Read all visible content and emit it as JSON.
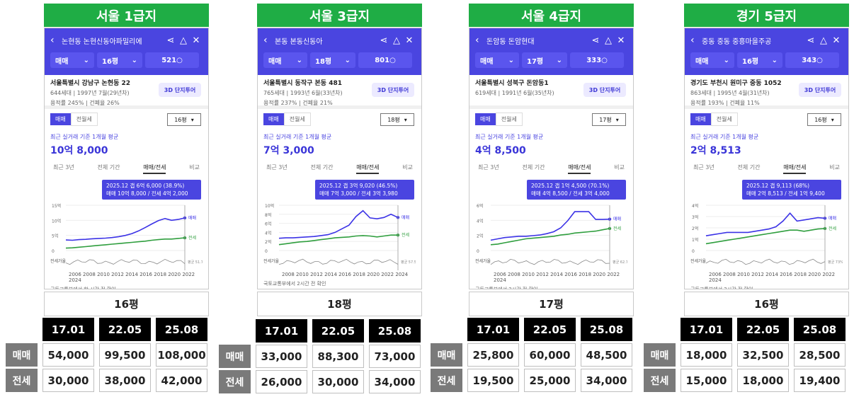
{
  "cards": [
    {
      "title": "서울 1급지",
      "apt_name": "논현동 논현신동아파밀리에",
      "filter_type": "매매",
      "filter_size": "16평",
      "filter_count": "521",
      "address": "서울특별시 강남구 논현동 22",
      "households": "644세대 | 1997년 7월(29년차)",
      "ratios": "용적률 245% | 건폐율 26%",
      "btn_3d": "3D 단지투어",
      "seg_sale": "매매",
      "seg_rent": "전월세",
      "size_select": "16평",
      "recent_label": "최근 실거래 기준 1개월 평균",
      "price": "10억 8,000",
      "tabs": [
        "최근 3년",
        "전체 기간",
        "매매/전세",
        "비교"
      ],
      "tooltip_line1": "2025.12  갭 6억 6,000 (38.9%)",
      "tooltip_line2": "매매 10억 8,000 / 전세 4억 2,000",
      "y_ticks": [
        "15억",
        "10억",
        "5억",
        "0"
      ],
      "ratio_label": "전세가율",
      "ratio_value": "평균 51.7%",
      "legend_sale": "매매",
      "legend_rent": "전세",
      "years": "2006 2008 2010 2012 2014 2016 2018 2020 2022 2024",
      "source": "국토교통부에서 한 시간 전 확인",
      "pyeong": "16평",
      "table": {
        "dates": [
          "17.01",
          "22.05",
          "25.08"
        ],
        "sale_label": "매매",
        "sale": [
          "54,000",
          "99,500",
          "108,000"
        ],
        "rent_label": "전세",
        "rent": [
          "30,000",
          "38,000",
          "42,000"
        ]
      },
      "series": {
        "sale": [
          3.5,
          3.4,
          3.6,
          3.7,
          3.9,
          4.0,
          4.1,
          4.3,
          4.6,
          5.0,
          5.6,
          6.5,
          7.6,
          8.8,
          9.9,
          10.6,
          10.0,
          10.3,
          10.8
        ],
        "rent": [
          0.8,
          0.9,
          1.1,
          1.3,
          1.5,
          1.7,
          1.9,
          2.1,
          2.3,
          2.5,
          2.7,
          2.9,
          3.1,
          3.4,
          3.6,
          3.8,
          3.8,
          4.0,
          4.2
        ]
      },
      "colors": {
        "band": "#1fad45",
        "sale": "#3b32e6",
        "rent": "#2f9e3e"
      }
    },
    {
      "title": "서울 3급지",
      "apt_name": "본동 본동신동아",
      "filter_type": "매매",
      "filter_size": "18평",
      "filter_count": "801",
      "address": "서울특별시 동작구 본동 481",
      "households": "765세대 | 1993년 6월(33년차)",
      "ratios": "용적률 237% | 건폐율 21%",
      "btn_3d": "3D 단지투어",
      "seg_sale": "매매",
      "seg_rent": "전월세",
      "size_select": "18평",
      "recent_label": "최근 실거래 기준 1개월 평균",
      "price": "7억 3,000",
      "tabs": [
        "최근 3년",
        "전체 기간",
        "매매/전세",
        "비교"
      ],
      "tooltip_line1": "2025.12  갭 3억 9,020 (46.5%)",
      "tooltip_line2": "매매 7억 3,000 / 전세 3억 3,980",
      "y_ticks": [
        "10억",
        "8억",
        "6억",
        "4억",
        "2억",
        "0"
      ],
      "ratio_label": "전세가율",
      "ratio_value": "평균 57.5%",
      "legend_sale": "매매",
      "legend_rent": "전세",
      "years": "2008 2010 2012 2014 2016 2018 2020 2022 2024",
      "source": "국토교통부에서 2시간 전 확인",
      "pyeong": "18평",
      "table": {
        "dates": [
          "17.01",
          "22.05",
          "25.08"
        ],
        "sale_label": "매매",
        "sale": [
          "33,000",
          "88,300",
          "73,000"
        ],
        "rent_label": "전세",
        "rent": [
          "26,000",
          "30,000",
          "34,000"
        ]
      },
      "series": {
        "sale": [
          2.7,
          2.8,
          2.8,
          2.9,
          3.0,
          3.1,
          3.3,
          3.5,
          4.0,
          4.8,
          5.6,
          7.5,
          8.8,
          7.2,
          7.0,
          7.3,
          8.0,
          7.3
        ],
        "rent": [
          1.3,
          1.5,
          1.7,
          1.9,
          2.0,
          2.2,
          2.4,
          2.6,
          2.8,
          2.9,
          3.0,
          3.2,
          3.3,
          3.2,
          3.0,
          3.2,
          3.4,
          3.4
        ]
      },
      "colors": {
        "band": "#1fad45",
        "sale": "#3b32e6",
        "rent": "#2f9e3e"
      }
    },
    {
      "title": "서울 4급지",
      "apt_name": "돈암동 돈암현대",
      "filter_type": "매매",
      "filter_size": "17평",
      "filter_count": "333",
      "address": "서울특별시 성북구 돈암동1",
      "households": "619세대 | 1991년 6월(35년차)",
      "ratios": "",
      "btn_3d": "3D 단지투어",
      "seg_sale": "매매",
      "seg_rent": "전월세",
      "size_select": "17평",
      "recent_label": "최근 실거래 기준 1개월 평균",
      "price": "4억 8,500",
      "tabs": [
        "최근 3년",
        "전체 기간",
        "매매/전세",
        "비교"
      ],
      "tooltip_line1": "2025.12  갭 1억 4,500 (70.1%)",
      "tooltip_line2": "매매 4억 8,500 / 전세 3억 4,000",
      "y_ticks": [
        "6억",
        "4억",
        "2억",
        "0"
      ],
      "ratio_label": "전세가율",
      "ratio_value": "평균 62.7%",
      "legend_sale": "매매",
      "legend_rent": "전세",
      "years": "2006 2008 2010 2012 2014 2016 2018 2020 2022 2024",
      "source": "국토교통부에서 2시간 전 확인",
      "pyeong": "17평",
      "table": {
        "dates": [
          "17.01",
          "22.05",
          "25.08"
        ],
        "sale_label": "매매",
        "sale": [
          "25,800",
          "60,000",
          "48,500"
        ],
        "rent_label": "전세",
        "rent": [
          "19,500",
          "25,000",
          "34,000"
        ]
      },
      "series": {
        "sale": [
          1.6,
          1.8,
          2.0,
          2.1,
          2.2,
          2.2,
          2.3,
          2.4,
          2.6,
          2.9,
          3.5,
          4.6,
          6.0,
          6.0,
          6.0,
          4.8,
          4.8,
          4.85
        ],
        "rent": [
          0.9,
          1.0,
          1.2,
          1.4,
          1.6,
          1.8,
          1.9,
          2.0,
          2.1,
          2.2,
          2.4,
          2.5,
          2.7,
          2.8,
          2.9,
          3.0,
          3.2,
          3.4
        ]
      },
      "colors": {
        "band": "#1fad45",
        "sale": "#3b32e6",
        "rent": "#2f9e3e"
      }
    },
    {
      "title": "경기 5급지",
      "apt_name": "중동 중동 중흥마을주공",
      "filter_type": "매매",
      "filter_size": "16평",
      "filter_count": "343",
      "address": "경기도 부천시 원미구 중동 1052",
      "households": "863세대 | 1995년 4월(31년차)",
      "ratios": "용적률 193% | 건폐율 11%",
      "btn_3d": "3D 단지투어",
      "seg_sale": "매매",
      "seg_rent": "전월세",
      "size_select": "16평",
      "recent_label": "최근 실거래 기준 1개월 평균",
      "price": "2억 8,513",
      "tabs": [
        "최근 3년",
        "전체 기간",
        "매매/전세",
        "비교"
      ],
      "tooltip_line1": "2025.12  갭 9,113 (68%)",
      "tooltip_line2": "매매 2억 8,513 / 전세 1억 9,400",
      "y_ticks": [
        "4억",
        "3억",
        "2억",
        "1억",
        "0"
      ],
      "ratio_label": "전세가율",
      "ratio_value": "평균 73%",
      "legend_sale": "매매",
      "legend_rent": "전세",
      "years": "2006 2008 2010 2012 2014 2016 2018 2020 2022 2024",
      "source": "국토교통부에서 2시간 전 확인",
      "pyeong": "16평",
      "table": {
        "dates": [
          "17.01",
          "22.05",
          "25.08"
        ],
        "sale_label": "매매",
        "sale": [
          "18,000",
          "32,500",
          "28,500"
        ],
        "rent_label": "전세",
        "rent": [
          "15,000",
          "18,000",
          "19,400"
        ]
      },
      "series": {
        "sale": [
          1.3,
          1.4,
          1.5,
          1.6,
          1.6,
          1.6,
          1.6,
          1.7,
          1.8,
          1.9,
          2.1,
          2.6,
          3.3,
          2.6,
          2.7,
          2.8,
          2.9,
          2.85
        ],
        "rent": [
          0.6,
          0.7,
          0.8,
          0.9,
          1.0,
          1.1,
          1.2,
          1.3,
          1.4,
          1.5,
          1.6,
          1.7,
          1.8,
          1.8,
          1.7,
          1.8,
          1.9,
          1.94
        ]
      },
      "colors": {
        "band": "#1fad45",
        "sale": "#3b32e6",
        "rent": "#2f9e3e"
      }
    }
  ]
}
